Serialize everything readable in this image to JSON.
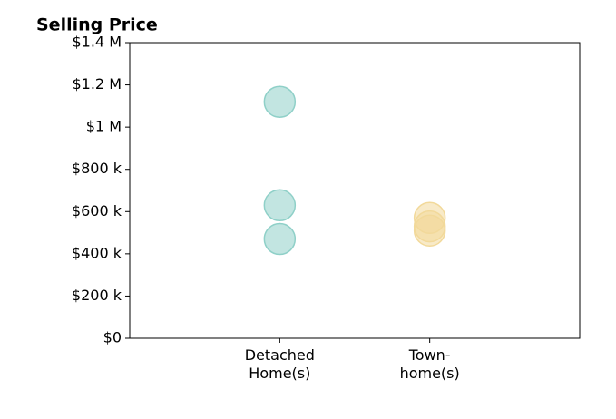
{
  "chart_data": {
    "type": "strip",
    "title": "Selling Price",
    "categories": [
      "Detached\nHome(s)",
      "Town-\nhome(s)"
    ],
    "values": [
      [
        1120000,
        630000,
        470000
      ],
      [
        570000,
        530000,
        510000
      ]
    ],
    "colors": [
      "#8fd0c8",
      "#f2d99a"
    ],
    "ylim": [
      0,
      1400000
    ],
    "yticks": [
      {
        "value": 0,
        "label": "$0"
      },
      {
        "value": 200000,
        "label": "$200 k"
      },
      {
        "value": 400000,
        "label": "$400 k"
      },
      {
        "value": 600000,
        "label": "$600 k"
      },
      {
        "value": 800000,
        "label": "$800 k"
      },
      {
        "value": 1000000,
        "label": "$1 M"
      },
      {
        "value": 1200000,
        "label": "$1.2 M"
      },
      {
        "value": 1400000,
        "label": "$1.4 M"
      }
    ],
    "grid": false
  }
}
